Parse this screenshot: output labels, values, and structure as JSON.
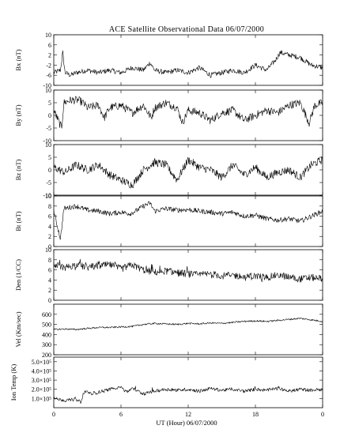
{
  "chart_data": {
    "type": "line",
    "title": "ACE Satellite Observational Data   06/07/2000",
    "xlabel": "UT (Hour)  06/07/2000",
    "x_ticks": [
      "0",
      "6",
      "12",
      "18",
      "0"
    ],
    "x_range_hours": [
      0,
      24
    ],
    "grid": false,
    "line_color": "#000000",
    "panels": [
      {
        "name": "Bx (nT)",
        "ylim": [
          -10,
          10
        ],
        "yticks": [
          "-10",
          "-6",
          "-2",
          "2",
          "6",
          "10"
        ],
        "keypoints": [
          [
            0,
            -5
          ],
          [
            0.6,
            -4
          ],
          [
            0.8,
            3
          ],
          [
            1.0,
            -5
          ],
          [
            1.5,
            -6
          ],
          [
            2,
            -5
          ],
          [
            3,
            -4
          ],
          [
            4,
            -5
          ],
          [
            5,
            -4
          ],
          [
            6,
            -5
          ],
          [
            7,
            -3
          ],
          [
            8,
            -4
          ],
          [
            8.6,
            -1
          ],
          [
            9,
            -4
          ],
          [
            10,
            -5
          ],
          [
            11,
            -4
          ],
          [
            12,
            -5
          ],
          [
            13,
            -3
          ],
          [
            14,
            -6
          ],
          [
            15,
            -5
          ],
          [
            16,
            -4
          ],
          [
            17,
            -5
          ],
          [
            18,
            -2
          ],
          [
            19,
            -4
          ],
          [
            19.8,
            0
          ],
          [
            20.2,
            3
          ],
          [
            21,
            2
          ],
          [
            22,
            1
          ],
          [
            23,
            -2
          ],
          [
            24,
            -3
          ]
        ]
      },
      {
        "name": "By (nT)",
        "ylim": [
          -10,
          10
        ],
        "yticks": [
          "-10",
          "-5",
          "0",
          "5",
          "10"
        ],
        "keypoints": [
          [
            0,
            2
          ],
          [
            0.7,
            -5
          ],
          [
            0.9,
            5
          ],
          [
            1.5,
            6
          ],
          [
            2.2,
            6
          ],
          [
            2.6,
            5
          ],
          [
            3,
            3
          ],
          [
            4,
            4
          ],
          [
            4.5,
            -1
          ],
          [
            5,
            3
          ],
          [
            6,
            4
          ],
          [
            7,
            1
          ],
          [
            8,
            4
          ],
          [
            8.7,
            -1
          ],
          [
            9,
            3
          ],
          [
            10,
            5
          ],
          [
            11,
            3
          ],
          [
            11.5,
            -3
          ],
          [
            12,
            2
          ],
          [
            13,
            1
          ],
          [
            14,
            -2
          ],
          [
            15,
            1
          ],
          [
            16,
            2
          ],
          [
            17,
            -2
          ],
          [
            18,
            0
          ],
          [
            19,
            2
          ],
          [
            20,
            1
          ],
          [
            21,
            4
          ],
          [
            22,
            5
          ],
          [
            22.8,
            -3
          ],
          [
            23.3,
            4
          ],
          [
            24,
            5
          ]
        ]
      },
      {
        "name": "Bz (nT)",
        "ylim": [
          -10,
          10
        ],
        "yticks": [
          "-10",
          "-5",
          "0",
          "5",
          "10"
        ],
        "keypoints": [
          [
            0,
            1
          ],
          [
            1,
            -1
          ],
          [
            2,
            2
          ],
          [
            3,
            0
          ],
          [
            4,
            2
          ],
          [
            5,
            -2
          ],
          [
            6,
            -4
          ],
          [
            7,
            -6
          ],
          [
            8,
            0
          ],
          [
            9,
            3
          ],
          [
            10,
            2
          ],
          [
            11,
            -4
          ],
          [
            12,
            4
          ],
          [
            13,
            1
          ],
          [
            14,
            0
          ],
          [
            15,
            -3
          ],
          [
            16,
            2
          ],
          [
            17,
            -2
          ],
          [
            18,
            1
          ],
          [
            19,
            -3
          ],
          [
            20,
            -1
          ],
          [
            21,
            0
          ],
          [
            22,
            -3
          ],
          [
            23,
            2
          ],
          [
            24,
            4
          ]
        ]
      },
      {
        "name": "Bt (nT)",
        "ylim": [
          0,
          10
        ],
        "yticks": [
          "0",
          "2",
          "4",
          "6",
          "8",
          "10"
        ],
        "keypoints": [
          [
            0,
            7
          ],
          [
            0.6,
            1.5
          ],
          [
            0.9,
            7.5
          ],
          [
            2,
            8
          ],
          [
            3,
            7.2
          ],
          [
            4,
            7
          ],
          [
            5,
            6.5
          ],
          [
            6,
            6.8
          ],
          [
            6.8,
            6.5
          ],
          [
            7.3,
            7
          ],
          [
            8,
            8
          ],
          [
            8.6,
            8.6
          ],
          [
            9,
            7
          ],
          [
            10,
            7.5
          ],
          [
            11,
            7.2
          ],
          [
            12,
            7.3
          ],
          [
            13,
            7
          ],
          [
            14,
            6.8
          ],
          [
            15,
            6.5
          ],
          [
            16,
            6.8
          ],
          [
            17,
            6
          ],
          [
            18,
            6.2
          ],
          [
            19,
            5.5
          ],
          [
            20,
            5.2
          ],
          [
            21,
            5.5
          ],
          [
            22,
            5
          ],
          [
            23,
            6
          ],
          [
            24,
            7
          ]
        ]
      },
      {
        "name": "Den (1/CC)",
        "ylim": [
          0,
          10
        ],
        "yticks": [
          "0",
          "2",
          "4",
          "6",
          "8",
          "10"
        ],
        "keypoints": [
          [
            0,
            7
          ],
          [
            1,
            6.5
          ],
          [
            2,
            7
          ],
          [
            3,
            6.5
          ],
          [
            4,
            6.8
          ],
          [
            5,
            7
          ],
          [
            6,
            6.2
          ],
          [
            7,
            7
          ],
          [
            8,
            6
          ],
          [
            9,
            5.5
          ],
          [
            10,
            5.8
          ],
          [
            11,
            5.5
          ],
          [
            12,
            5.2
          ],
          [
            13,
            5
          ],
          [
            14,
            5.2
          ],
          [
            15,
            4.8
          ],
          [
            16,
            5
          ],
          [
            17,
            4.5
          ],
          [
            18,
            4.8
          ],
          [
            19,
            4.5
          ],
          [
            20,
            5
          ],
          [
            21,
            4.6
          ],
          [
            22,
            4.2
          ],
          [
            23,
            4.5
          ],
          [
            24,
            4.3
          ]
        ]
      },
      {
        "name": "Vel (Km/sec)",
        "ylim": [
          200,
          700
        ],
        "yticks": [
          "200",
          "300",
          "400",
          "500",
          "600"
        ],
        "keypoints": [
          [
            0,
            450
          ],
          [
            1,
            455
          ],
          [
            2,
            450
          ],
          [
            3,
            460
          ],
          [
            4,
            470
          ],
          [
            5,
            470
          ],
          [
            6,
            475
          ],
          [
            7,
            480
          ],
          [
            8,
            500
          ],
          [
            9,
            510
          ],
          [
            10,
            505
          ],
          [
            11,
            500
          ],
          [
            12,
            510
          ],
          [
            13,
            505
          ],
          [
            14,
            515
          ],
          [
            15,
            510
          ],
          [
            16,
            520
          ],
          [
            17,
            530
          ],
          [
            18,
            535
          ],
          [
            19,
            530
          ],
          [
            20,
            540
          ],
          [
            21,
            550
          ],
          [
            22,
            560
          ],
          [
            23,
            545
          ],
          [
            24,
            530
          ]
        ]
      },
      {
        "name": "Ion Temp (K)",
        "ylim": [
          0,
          550000
        ],
        "yticks": [
          "1.0×10⁵",
          "2.0×10⁵",
          "3.0×10⁵",
          "4.0×10⁵",
          "5.0×10⁵"
        ],
        "keypoints": [
          [
            0,
            100000
          ],
          [
            1,
            80000
          ],
          [
            2,
            90000
          ],
          [
            2.4,
            60000
          ],
          [
            2.8,
            180000
          ],
          [
            3.5,
            150000
          ],
          [
            4,
            170000
          ],
          [
            5,
            200000
          ],
          [
            6,
            230000
          ],
          [
            6.5,
            170000
          ],
          [
            7,
            210000
          ],
          [
            8,
            150000
          ],
          [
            9,
            180000
          ],
          [
            10,
            200000
          ],
          [
            11,
            190000
          ],
          [
            12,
            200000
          ],
          [
            13,
            180000
          ],
          [
            14,
            210000
          ],
          [
            15,
            190000
          ],
          [
            16,
            200000
          ],
          [
            17,
            180000
          ],
          [
            18,
            200000
          ],
          [
            19,
            190000
          ],
          [
            20,
            210000
          ],
          [
            21,
            180000
          ],
          [
            22,
            200000
          ],
          [
            23,
            190000
          ],
          [
            24,
            200000
          ]
        ]
      }
    ]
  }
}
